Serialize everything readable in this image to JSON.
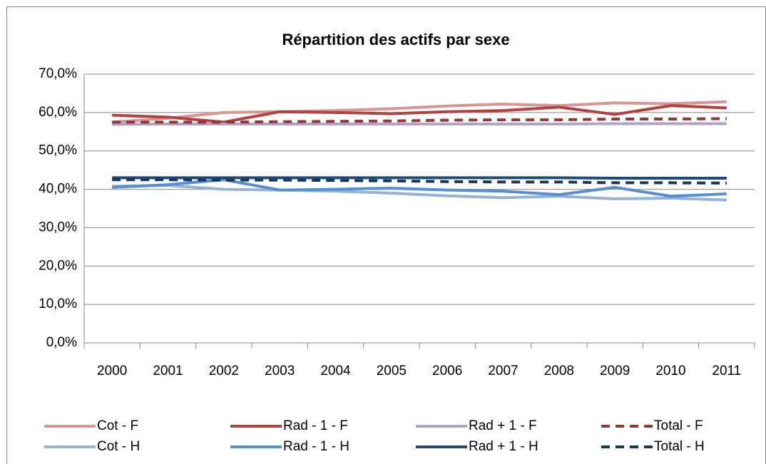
{
  "chart_data": {
    "type": "line",
    "title": "Répartition des actifs par sexe",
    "categories": [
      "2000",
      "2001",
      "2002",
      "2003",
      "2004",
      "2005",
      "2006",
      "2007",
      "2008",
      "2009",
      "2010",
      "2011"
    ],
    "ylim": [
      0,
      70
    ],
    "yticks": [
      {
        "value": 0,
        "label": "0,0%"
      },
      {
        "value": 10,
        "label": "10,0%"
      },
      {
        "value": 20,
        "label": "20,0%"
      },
      {
        "value": 30,
        "label": "30,0%"
      },
      {
        "value": 40,
        "label": "40,0%"
      },
      {
        "value": 50,
        "label": "50,0%"
      },
      {
        "value": 60,
        "label": "60,0%"
      },
      {
        "value": 70,
        "label": "70,0%"
      }
    ],
    "grid": true,
    "legend": "bottom",
    "series": [
      {
        "name": "Cot - F",
        "color": "#d99594",
        "dashed": false,
        "values": [
          57.5,
          58.5,
          60,
          60.2,
          60.5,
          61,
          61.7,
          62.2,
          61.8,
          62.5,
          62.3,
          62.8
        ]
      },
      {
        "name": "Rad - 1 - F",
        "color": "#b5413e",
        "dashed": false,
        "values": [
          59.3,
          58.8,
          57.5,
          60.2,
          60,
          59.7,
          60.2,
          60.5,
          61.4,
          59.5,
          61.8,
          61.2
        ]
      },
      {
        "name": "Rad + 1 - F",
        "color": "#b3a2c7",
        "dashed": false,
        "values": [
          56.9,
          57,
          57,
          57,
          57,
          57,
          57,
          57,
          57,
          57.1,
          57.1,
          57.1
        ]
      },
      {
        "name": "Total - F",
        "color": "#953735",
        "dashed": true,
        "values": [
          57.5,
          57.5,
          57.5,
          57.6,
          57.7,
          57.8,
          58,
          58.1,
          58.1,
          58.3,
          58.3,
          58.4
        ]
      },
      {
        "name": "Cot - H",
        "color": "#95b3d7",
        "dashed": false,
        "values": [
          40.8,
          41,
          40,
          39.8,
          39.5,
          39,
          38.3,
          37.8,
          38.2,
          37.5,
          37.7,
          37.2
        ]
      },
      {
        "name": "Rad - 1 - H",
        "color": "#558ed5",
        "dashed": false,
        "values": [
          40.5,
          41.2,
          42.5,
          39.8,
          40,
          40.3,
          39.8,
          39.5,
          38.6,
          40.5,
          38.2,
          38.8
        ]
      },
      {
        "name": "Rad + 1 - H",
        "color": "#1f497d",
        "dashed": false,
        "values": [
          43,
          43,
          43,
          43,
          43,
          43,
          43,
          43,
          43,
          42.9,
          42.9,
          42.9
        ]
      },
      {
        "name": "Total - H",
        "color": "#17375e",
        "dashed": true,
        "values": [
          42.5,
          42.5,
          42.4,
          42.4,
          42.3,
          42.2,
          42,
          41.9,
          41.9,
          41.7,
          41.7,
          41.6
        ]
      }
    ]
  }
}
